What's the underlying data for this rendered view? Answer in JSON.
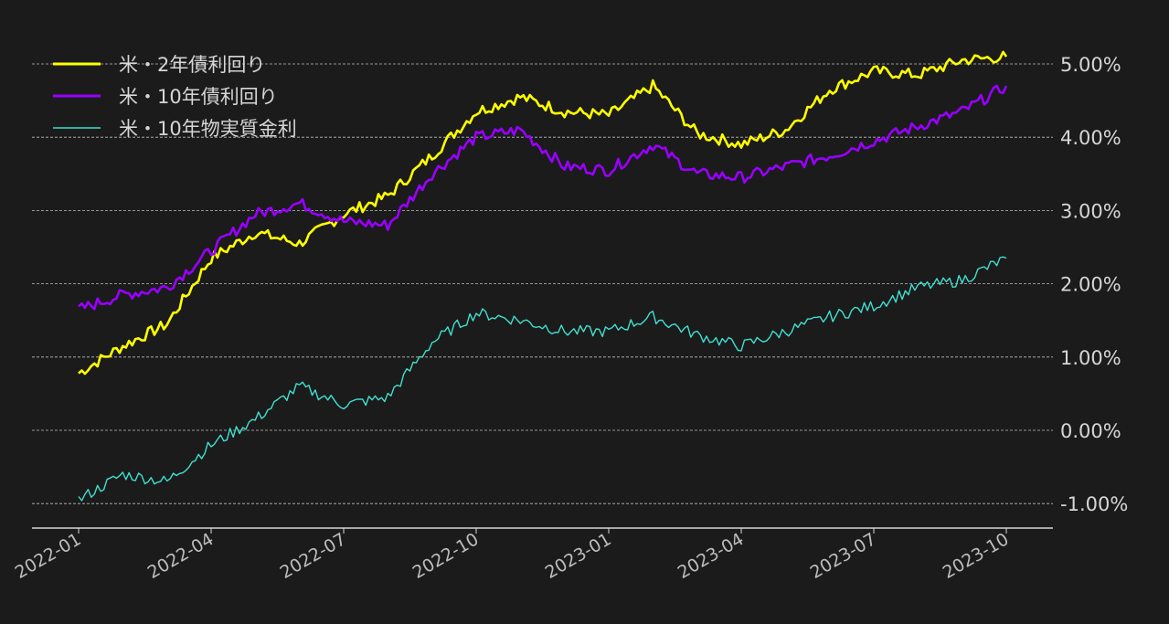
{
  "chart_data": {
    "type": "line",
    "title": "",
    "xlabel": "",
    "ylabel": "",
    "x_tick_labels": [
      "2022-01",
      "2022-04",
      "2022-07",
      "2022-10",
      "2023-01",
      "2023-04",
      "2023-07",
      "2023-10"
    ],
    "y_tick_labels": [
      "-1.00%",
      "0.00%",
      "1.00%",
      "2.00%",
      "3.00%",
      "4.00%",
      "5.00%"
    ],
    "ylim": [
      -1.3,
      5.2
    ],
    "y_unit": "%",
    "grid": "horizontal dashed",
    "legend_position": "top-left",
    "x": [
      "2022-01",
      "2022-02",
      "2022-03",
      "2022-04",
      "2022-05",
      "2022-06",
      "2022-07",
      "2022-08",
      "2022-09",
      "2022-10",
      "2022-11",
      "2022-12",
      "2023-01",
      "2023-02",
      "2023-03",
      "2023-04",
      "2023-05",
      "2023-06",
      "2023-07",
      "2023-08",
      "2023-09",
      "2023-10"
    ],
    "series": [
      {
        "name": "米・2年債利回り",
        "color": "#ffff00",
        "values": [
          0.78,
          1.15,
          1.45,
          2.35,
          2.7,
          2.55,
          2.95,
          3.2,
          3.75,
          4.35,
          4.55,
          4.35,
          4.3,
          4.7,
          4.05,
          3.9,
          4.1,
          4.65,
          4.9,
          4.85,
          5.05,
          5.1
        ]
      },
      {
        "name": "米・10年債利回り",
        "color": "#9900ff",
        "values": [
          1.65,
          1.85,
          1.95,
          2.45,
          2.95,
          3.1,
          2.85,
          2.8,
          3.5,
          4.0,
          4.1,
          3.6,
          3.55,
          3.9,
          3.5,
          3.45,
          3.6,
          3.75,
          3.95,
          4.15,
          4.35,
          4.7
        ]
      },
      {
        "name": "米・10年物実質金利",
        "color": "#40e0d0",
        "values": [
          -0.95,
          -0.6,
          -0.7,
          -0.2,
          0.15,
          0.6,
          0.35,
          0.45,
          1.2,
          1.6,
          1.5,
          1.35,
          1.35,
          1.55,
          1.3,
          1.15,
          1.35,
          1.55,
          1.7,
          1.95,
          2.05,
          2.35
        ]
      }
    ]
  }
}
